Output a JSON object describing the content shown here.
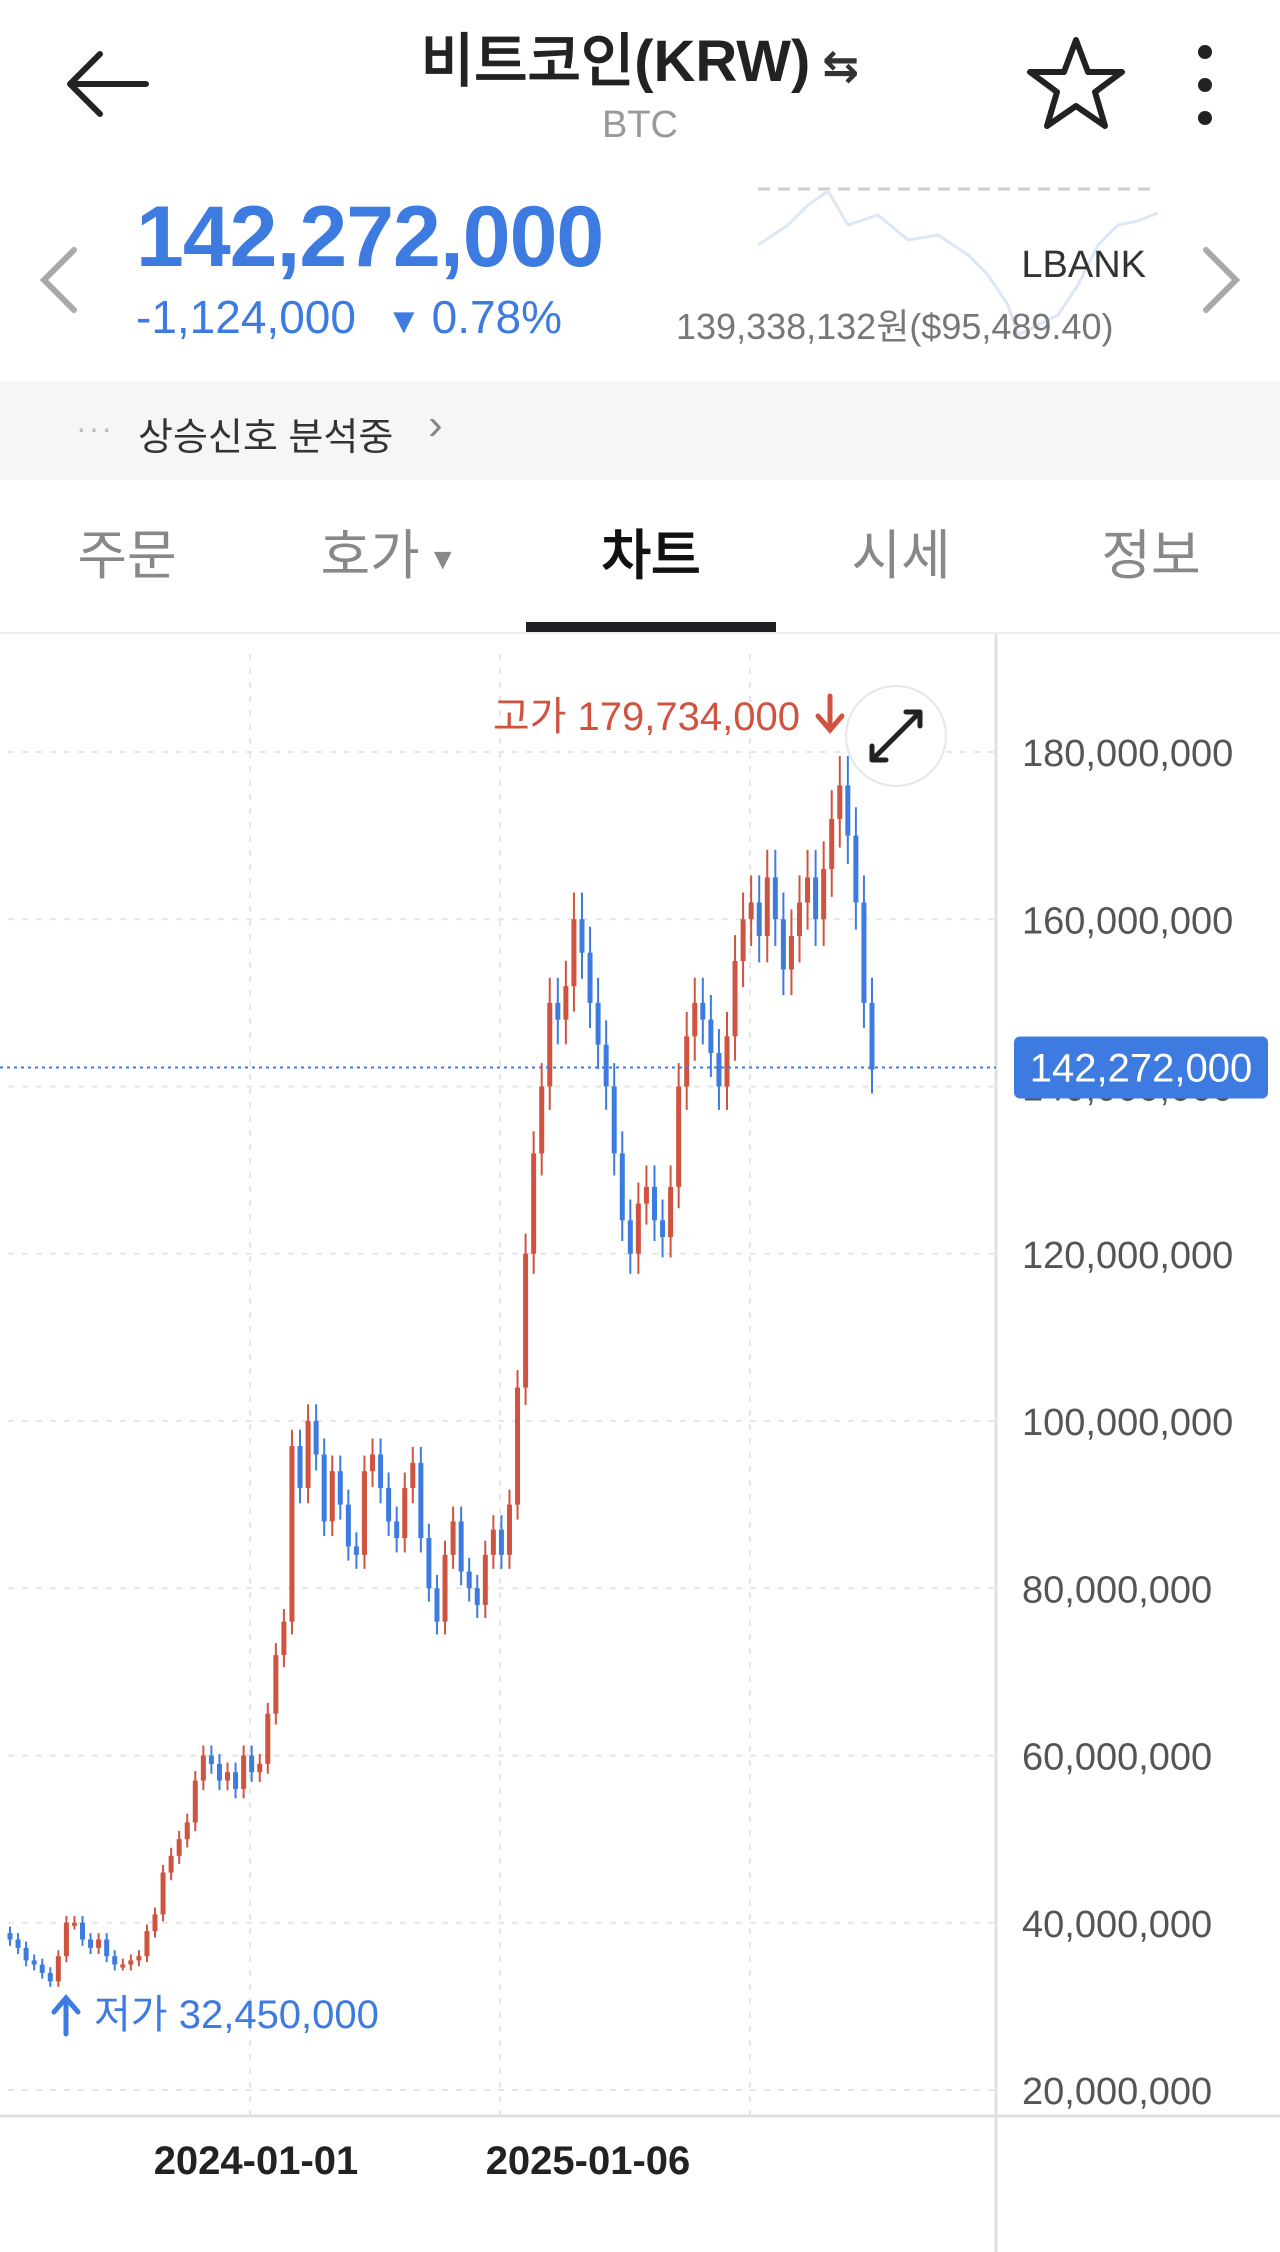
{
  "header": {
    "title": "비트코인(KRW)",
    "swap_icon": "⇆",
    "symbol": "BTC"
  },
  "price": {
    "current": "142,272,000",
    "change_amount": "-1,124,000",
    "change_percent": "0.78%",
    "exchange": "LBANK",
    "reference_price": "139,338,132원($95,489.40)",
    "color_down": "#3d7be0"
  },
  "signal": {
    "dots": "···",
    "text": "상승신호 분석중",
    "chevron": "›"
  },
  "tabs": [
    {
      "label": "주문"
    },
    {
      "label": "호가"
    },
    {
      "label": "차트"
    },
    {
      "label": "시세"
    },
    {
      "label": "정보"
    }
  ],
  "active_tab": "차트",
  "chart_data": {
    "type": "candlestick",
    "y_axis_labels": [
      "180,000,000",
      "160,000,000",
      "140,000,000",
      "120,000,000",
      "100,000,000",
      "80,000,000",
      "60,000,000",
      "40,000,000",
      "20,000,000"
    ],
    "ylim": [
      20000000,
      180000000
    ],
    "x_axis_labels": [
      "2024-01-01",
      "2025-01-06"
    ],
    "high_label": "고가 179,734,000",
    "low_label": "저가 32,450,000",
    "current_price_label": "142,272,000",
    "current_price": 142272000,
    "up_color": "#d0533f",
    "down_color": "#3d7be0",
    "closes": [
      38,
      37,
      35.5,
      35,
      34,
      33,
      36,
      40,
      40,
      38,
      37,
      38,
      36,
      35,
      35,
      35.5,
      36,
      39,
      41,
      46,
      48,
      50,
      52,
      57,
      60,
      59,
      57,
      58,
      56,
      60,
      58,
      59,
      65,
      72,
      76,
      97,
      92,
      100,
      96,
      88,
      94,
      90,
      85,
      84,
      94,
      96,
      92,
      88,
      86,
      92,
      95,
      86,
      80,
      76,
      84,
      88,
      82,
      80,
      78,
      84,
      87,
      84,
      90,
      104,
      120,
      132,
      140,
      150,
      148,
      152,
      160,
      156,
      150,
      145,
      140,
      132,
      124,
      120,
      126,
      128,
      124,
      122,
      128,
      140,
      146,
      150,
      148,
      144,
      140,
      146,
      155,
      160,
      162,
      158,
      165,
      160,
      154,
      158,
      162,
      165,
      160,
      166,
      172,
      176,
      170,
      162,
      150,
      142
    ]
  }
}
